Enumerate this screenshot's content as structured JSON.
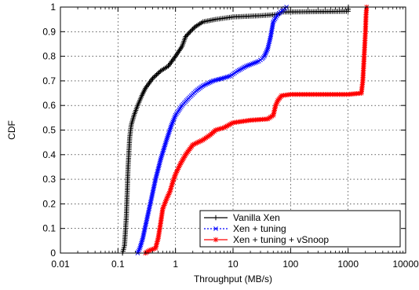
{
  "chart_data": {
    "type": "line",
    "xlabel": "Throughput (MB/s)",
    "ylabel": "CDF",
    "xscale": "log",
    "xlim": [
      0.01,
      10000
    ],
    "ylim": [
      0,
      1
    ],
    "x_ticks": [
      0.01,
      0.1,
      1,
      10,
      100,
      1000,
      10000
    ],
    "x_tick_labels": [
      "0.01",
      "0.1",
      "1",
      "10",
      "100",
      "1000",
      "10000"
    ],
    "y_ticks": [
      0,
      0.1,
      0.2,
      0.3,
      0.4,
      0.5,
      0.6,
      0.7,
      0.8,
      0.9,
      1
    ],
    "y_tick_labels": [
      "0",
      "0.1",
      "0.2",
      "0.3",
      "0.4",
      "0.5",
      "0.6",
      "0.7",
      "0.8",
      "0.9",
      "1"
    ],
    "grid": true,
    "legend_position": "bottom-right",
    "series": [
      {
        "name": "Vanilla Xen",
        "color": "#000000",
        "marker": "plus",
        "line_style": "solid",
        "points": [
          [
            0.12,
            0
          ],
          [
            0.13,
            0.03
          ],
          [
            0.14,
            0.15
          ],
          [
            0.15,
            0.35
          ],
          [
            0.16,
            0.47
          ],
          [
            0.17,
            0.52
          ],
          [
            0.19,
            0.56
          ],
          [
            0.22,
            0.6
          ],
          [
            0.26,
            0.64
          ],
          [
            0.3,
            0.67
          ],
          [
            0.4,
            0.71
          ],
          [
            0.55,
            0.74
          ],
          [
            0.75,
            0.76
          ],
          [
            1.0,
            0.8
          ],
          [
            1.3,
            0.84
          ],
          [
            1.5,
            0.88
          ],
          [
            1.8,
            0.9
          ],
          [
            2.2,
            0.92
          ],
          [
            3,
            0.94
          ],
          [
            5,
            0.95
          ],
          [
            10,
            0.96
          ],
          [
            30,
            0.965
          ],
          [
            60,
            0.97
          ],
          [
            65,
            0.975
          ],
          [
            70,
            0.98
          ],
          [
            500,
            0.982
          ],
          [
            1000,
            0.983
          ],
          [
            1010,
            1
          ]
        ]
      },
      {
        "name": "Xen + tuning",
        "color": "#0000ff",
        "marker": "x",
        "line_style": "dotted",
        "points": [
          [
            0.22,
            0
          ],
          [
            0.24,
            0.02
          ],
          [
            0.27,
            0.06
          ],
          [
            0.32,
            0.14
          ],
          [
            0.38,
            0.22
          ],
          [
            0.45,
            0.3
          ],
          [
            0.55,
            0.38
          ],
          [
            0.7,
            0.46
          ],
          [
            0.85,
            0.52
          ],
          [
            1.0,
            0.56
          ],
          [
            1.3,
            0.6
          ],
          [
            1.7,
            0.63
          ],
          [
            2.3,
            0.66
          ],
          [
            3,
            0.68
          ],
          [
            4.5,
            0.7
          ],
          [
            6.5,
            0.71
          ],
          [
            9,
            0.72
          ],
          [
            12,
            0.74
          ],
          [
            17,
            0.76
          ],
          [
            22,
            0.77
          ],
          [
            28,
            0.78
          ],
          [
            32,
            0.79
          ],
          [
            35,
            0.8
          ],
          [
            40,
            0.83
          ],
          [
            45,
            0.88
          ],
          [
            50,
            0.94
          ],
          [
            60,
            0.97
          ],
          [
            75,
            0.99
          ],
          [
            85,
            1
          ]
        ]
      },
      {
        "name": "Xen + tuning + vSnoop",
        "color": "#ff0000",
        "marker": "star",
        "line_style": "solid",
        "points": [
          [
            0.3,
            0
          ],
          [
            0.35,
            0.01
          ],
          [
            0.45,
            0.02
          ],
          [
            0.5,
            0.06
          ],
          [
            0.55,
            0.12
          ],
          [
            0.6,
            0.18
          ],
          [
            0.7,
            0.22
          ],
          [
            0.8,
            0.25
          ],
          [
            0.9,
            0.29
          ],
          [
            1.0,
            0.32
          ],
          [
            1.2,
            0.36
          ],
          [
            1.5,
            0.4
          ],
          [
            2,
            0.44
          ],
          [
            3,
            0.46
          ],
          [
            4,
            0.48
          ],
          [
            5,
            0.5
          ],
          [
            7,
            0.51
          ],
          [
            10,
            0.53
          ],
          [
            20,
            0.54
          ],
          [
            40,
            0.545
          ],
          [
            50,
            0.56
          ],
          [
            55,
            0.6
          ],
          [
            60,
            0.62
          ],
          [
            70,
            0.64
          ],
          [
            100,
            0.645
          ],
          [
            1000,
            0.645
          ],
          [
            1700,
            0.65
          ],
          [
            1800,
            0.7
          ],
          [
            1900,
            0.8
          ],
          [
            2000,
            0.9
          ],
          [
            2050,
            0.97
          ],
          [
            2100,
            1
          ]
        ]
      }
    ]
  }
}
